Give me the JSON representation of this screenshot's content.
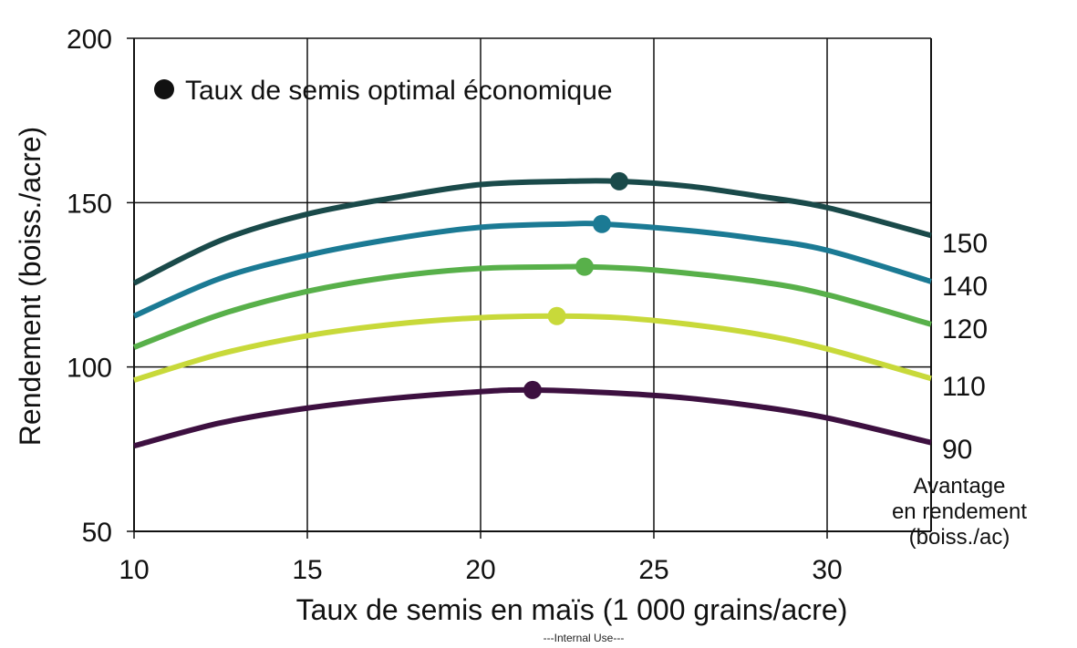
{
  "chart_data": {
    "type": "line",
    "xlabel": "Taux de semis en maïs (1 000 grains/acre)",
    "ylabel": "Rendement (boiss./acre)",
    "xlim": [
      10,
      33
    ],
    "ylim": [
      50,
      200
    ],
    "xticks": [
      10,
      15,
      20,
      25,
      30
    ],
    "yticks": [
      50,
      100,
      150,
      200
    ],
    "grid": true,
    "legend": {
      "text": "Taux de semis optimal économique",
      "marker_color": "#111111",
      "placement": "top-left"
    },
    "series_label_title": [
      "Avantage",
      "en rendement",
      "(boiss./ac)"
    ],
    "series": [
      {
        "name": "150",
        "color": "#1a4a4a",
        "x": [
          10,
          12.5,
          15,
          17.5,
          20,
          22.5,
          24,
          26,
          28,
          30,
          33
        ],
        "y": [
          125.5,
          138.5,
          146.5,
          151.5,
          155.5,
          156.5,
          156.5,
          155,
          152,
          148.5,
          140
        ],
        "optimum": {
          "x": 24,
          "y": 156.5
        }
      },
      {
        "name": "140",
        "color": "#1b7a94",
        "x": [
          10,
          12.5,
          15,
          17.5,
          20,
          22.5,
          23.5,
          26,
          28,
          30,
          33
        ],
        "y": [
          115.5,
          127,
          134,
          139,
          142.5,
          143.5,
          143.5,
          141.5,
          139,
          135.5,
          126
        ],
        "optimum": {
          "x": 23.5,
          "y": 143.5
        }
      },
      {
        "name": "120",
        "color": "#58b04a",
        "x": [
          10,
          12.5,
          15,
          17.5,
          20,
          22.5,
          23,
          25,
          28,
          30,
          33
        ],
        "y": [
          106,
          116,
          123,
          127.5,
          130,
          130.5,
          130.5,
          129.5,
          126,
          122,
          113
        ],
        "optimum": {
          "x": 23,
          "y": 130.5
        }
      },
      {
        "name": "110",
        "color": "#c8d93a",
        "x": [
          10,
          12.5,
          15,
          17.5,
          20,
          22.2,
          24,
          26,
          28,
          30,
          33
        ],
        "y": [
          96,
          104,
          109.5,
          113,
          115,
          115.5,
          115,
          113,
          110,
          105.5,
          96.5
        ],
        "optimum": {
          "x": 22.2,
          "y": 115.5
        }
      },
      {
        "name": "90",
        "color": "#3d1040",
        "x": [
          10,
          12.5,
          15,
          17.5,
          20,
          21.5,
          24,
          26,
          28,
          30,
          33
        ],
        "y": [
          76,
          83,
          87.5,
          90.5,
          92.5,
          93,
          92,
          90.5,
          88,
          84.5,
          77
        ],
        "optimum": {
          "x": 21.5,
          "y": 93
        }
      }
    ]
  },
  "footer": "---Internal  Use---"
}
